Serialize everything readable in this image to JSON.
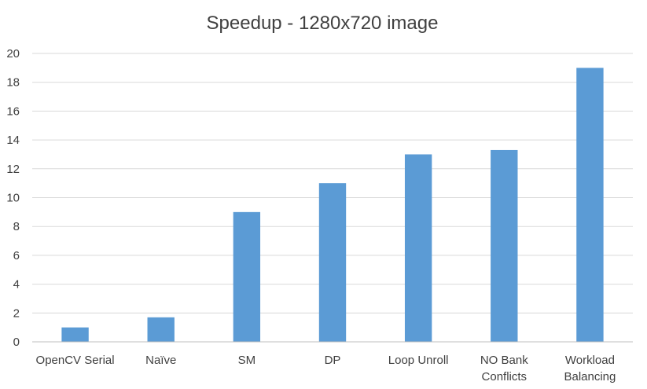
{
  "chart_data": {
    "type": "bar",
    "title": "Speedup - 1280x720 image",
    "xlabel": "",
    "ylabel": "",
    "categories": [
      "OpenCV Serial",
      "Naïve",
      "SM",
      "DP",
      "Loop Unroll",
      "NO Bank Conflicts",
      "Workload Balancing"
    ],
    "category_lines": [
      [
        "OpenCV Serial"
      ],
      [
        "Naïve"
      ],
      [
        "SM"
      ],
      [
        "DP"
      ],
      [
        "Loop Unroll"
      ],
      [
        "NO Bank",
        "Conflicts"
      ],
      [
        "Workload",
        "Balancing"
      ]
    ],
    "series": [
      {
        "values": [
          1.0,
          1.7,
          9.0,
          11.0,
          13.0,
          13.3,
          19.0
        ]
      }
    ],
    "ylim": [
      0,
      20
    ],
    "yticks": [
      0,
      2,
      4,
      6,
      8,
      10,
      12,
      14,
      16,
      18,
      20
    ],
    "grid": true,
    "legend": "none",
    "colors": {
      "bar": "#5B9BD5",
      "grid": "#D9D9D9",
      "axis": "#BFBFBF",
      "text": "#404040"
    }
  }
}
